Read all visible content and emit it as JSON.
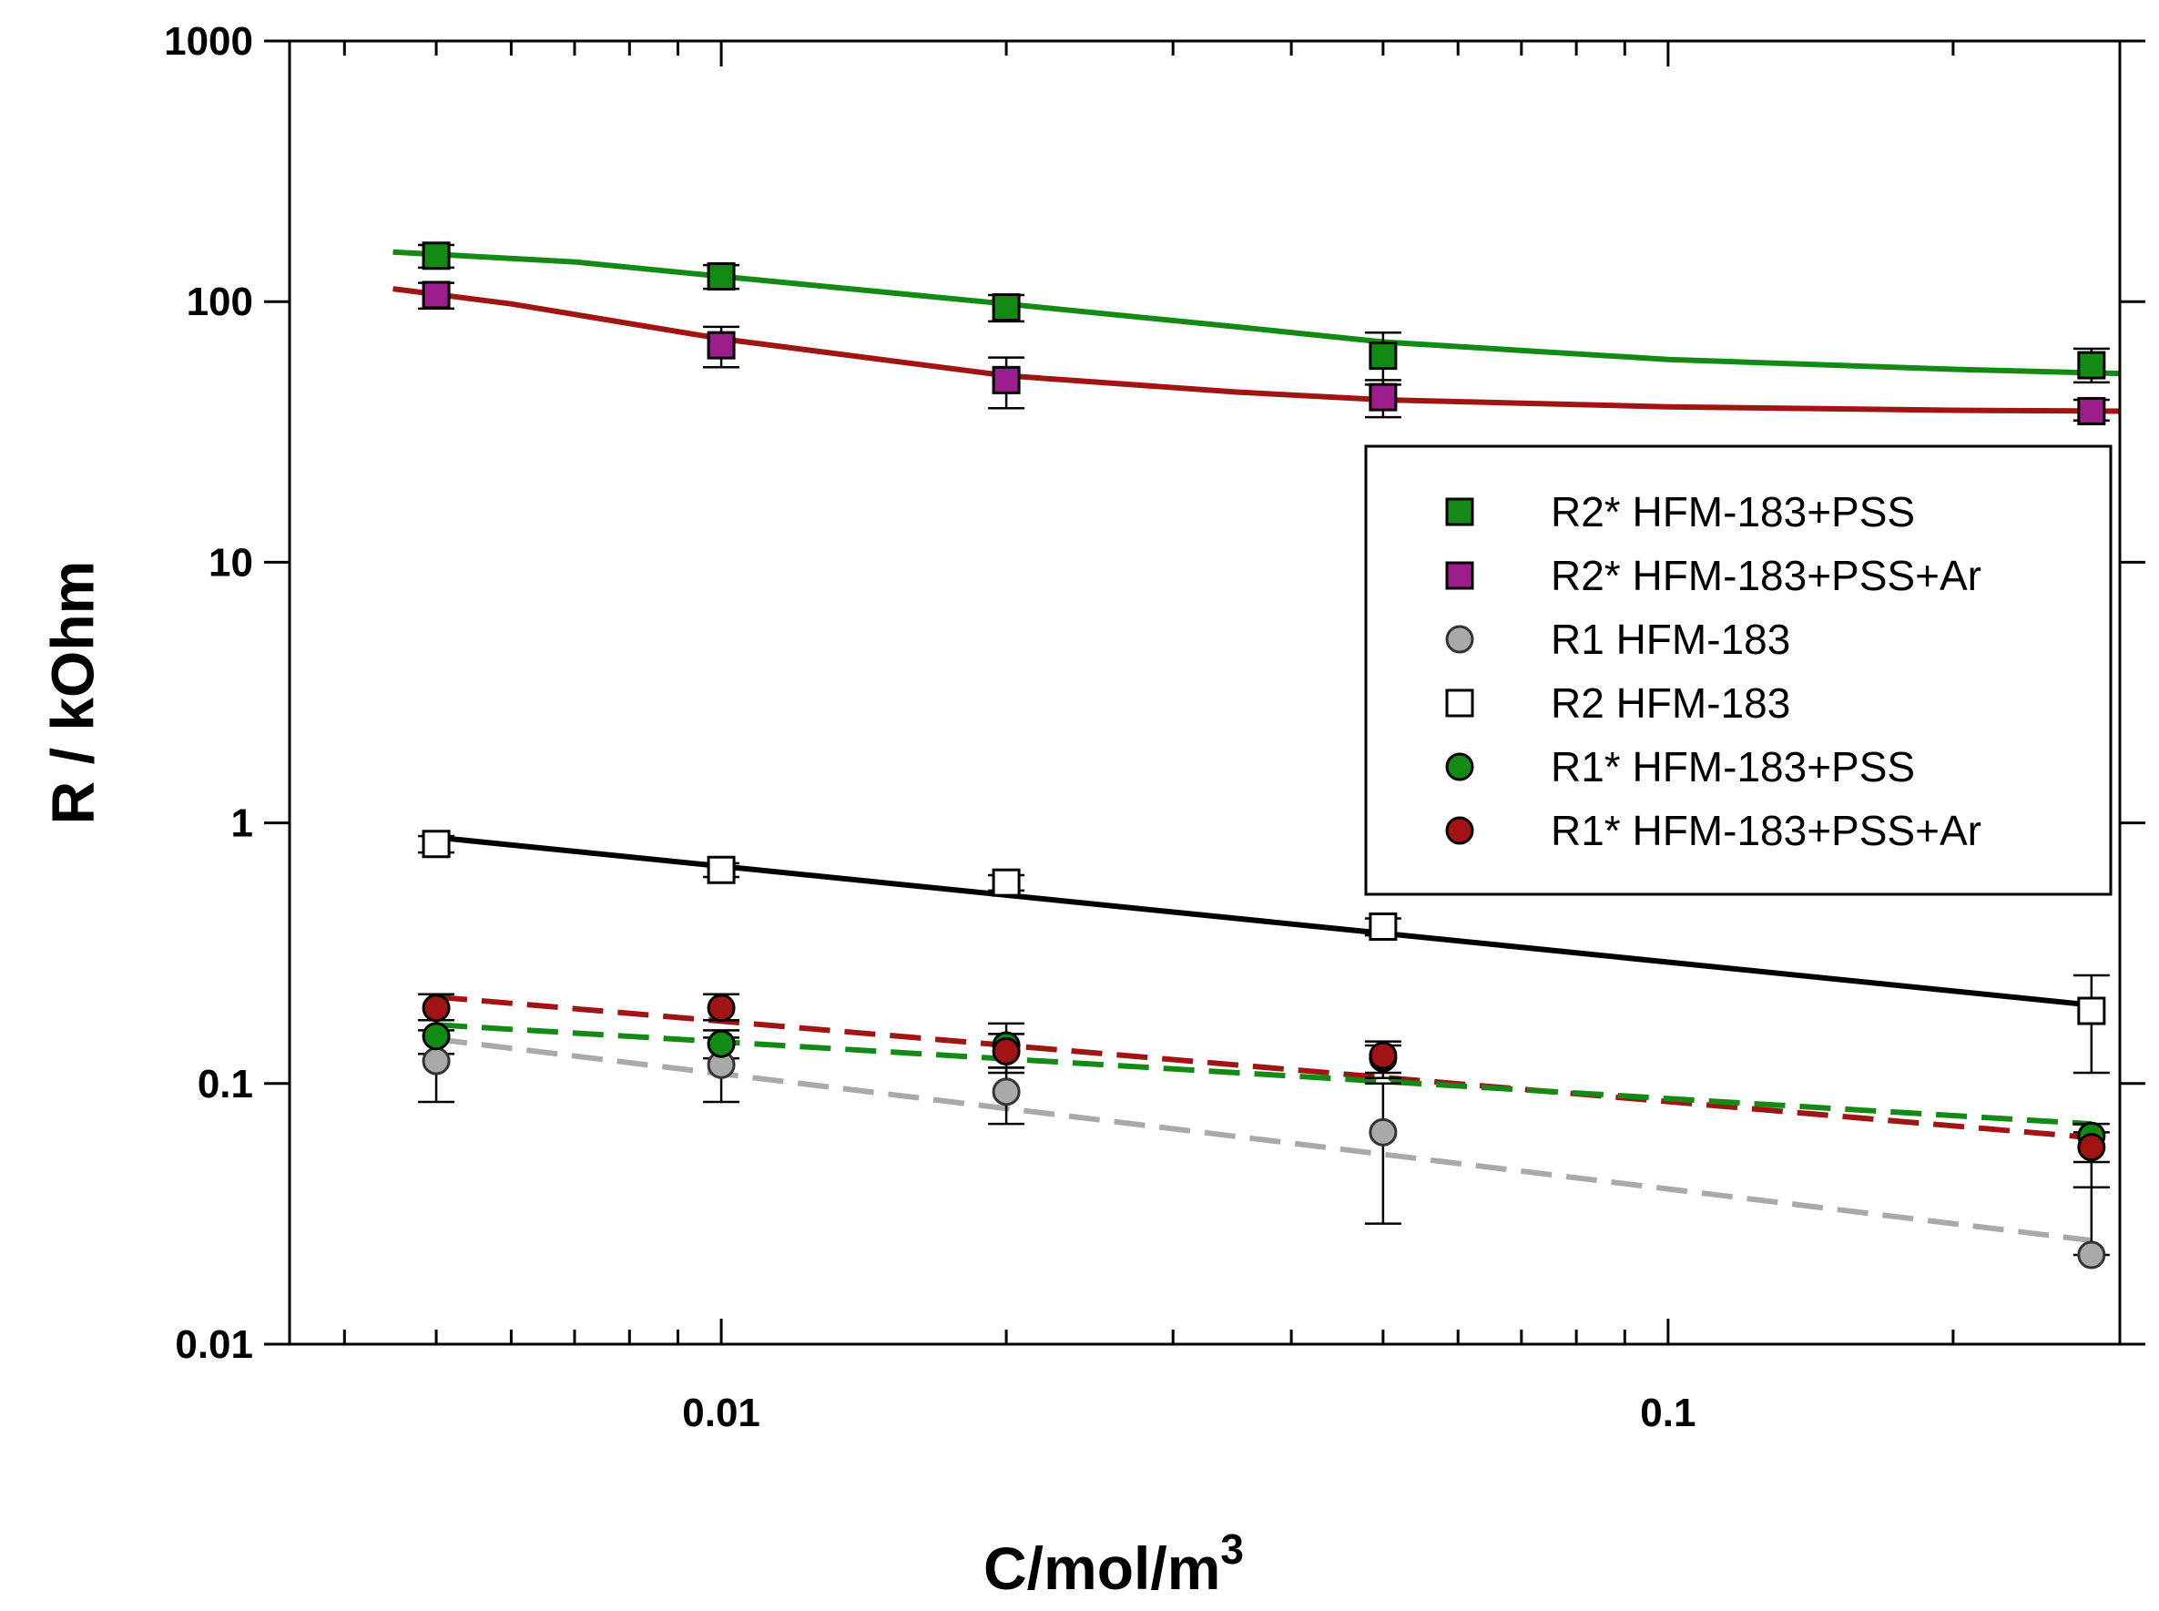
{
  "chart_data": {
    "type": "scatter",
    "title": "",
    "xlabel": "C/mol/m",
    "xlabel_superscript": "3",
    "ylabel": "R / kOhm",
    "xscale": "log",
    "yscale": "log",
    "xlim": [
      0.0035,
      0.3
    ],
    "ylim": [
      0.01,
      1000
    ],
    "x_tick_labels": [
      {
        "value": 0.01,
        "label": "0.01"
      },
      {
        "value": 0.1,
        "label": "0.1"
      }
    ],
    "y_tick_labels": [
      {
        "value": 0.01,
        "label": "0.01"
      },
      {
        "value": 0.1,
        "label": "0.1"
      },
      {
        "value": 1,
        "label": "1"
      },
      {
        "value": 10,
        "label": "10"
      },
      {
        "value": 100,
        "label": "100"
      },
      {
        "value": 1000,
        "label": "1000"
      }
    ],
    "legend_position": "right",
    "grid": false,
    "series": [
      {
        "name": "R2* HFM-183+PSS",
        "marker": "square",
        "fill": "#138a13",
        "stroke": "#000000",
        "points": [
          {
            "x": 0.005,
            "y": 150,
            "lo": 135,
            "hi": 165
          },
          {
            "x": 0.01,
            "y": 125,
            "lo": 112,
            "hi": 138
          },
          {
            "x": 0.02,
            "y": 95,
            "lo": 84,
            "hi": 106
          },
          {
            "x": 0.05,
            "y": 62,
            "lo": 48,
            "hi": 76
          },
          {
            "x": 0.28,
            "y": 57,
            "lo": 49,
            "hi": 66
          }
        ]
      },
      {
        "name": "R2* HFM-183+PSS+Ar",
        "marker": "square",
        "fill": "#9c1e8c",
        "stroke": "#000000",
        "points": [
          {
            "x": 0.005,
            "y": 106,
            "lo": 94,
            "hi": 118
          },
          {
            "x": 0.01,
            "y": 68,
            "lo": 56,
            "hi": 80
          },
          {
            "x": 0.02,
            "y": 50,
            "lo": 39,
            "hi": 61
          },
          {
            "x": 0.05,
            "y": 43,
            "lo": 36,
            "hi": 50
          },
          {
            "x": 0.28,
            "y": 38,
            "lo": 35,
            "hi": 42
          }
        ]
      },
      {
        "name": "R1 HFM-183",
        "marker": "circle",
        "fill": "#a9a9a9",
        "stroke": "#333333",
        "points": [
          {
            "x": 0.005,
            "y": 0.122,
            "lo": 0.085,
            "hi": 0.16
          },
          {
            "x": 0.01,
            "y": 0.118,
            "lo": 0.085,
            "hi": 0.15
          },
          {
            "x": 0.02,
            "y": 0.093,
            "lo": 0.07,
            "hi": 0.115
          },
          {
            "x": 0.05,
            "y": 0.065,
            "lo": 0.029,
            "hi": 0.1
          },
          {
            "x": 0.28,
            "y": 0.022,
            "lo": 0.022,
            "hi": 0.04
          }
        ]
      },
      {
        "name": "R2 HFM-183",
        "marker": "square",
        "fill": "#ffffff",
        "stroke": "#000000",
        "points": [
          {
            "x": 0.005,
            "y": 0.83,
            "lo": 0.77,
            "hi": 0.89
          },
          {
            "x": 0.01,
            "y": 0.66,
            "lo": 0.62,
            "hi": 0.7
          },
          {
            "x": 0.02,
            "y": 0.59,
            "lo": 0.55,
            "hi": 0.63
          },
          {
            "x": 0.05,
            "y": 0.4,
            "lo": 0.37,
            "hi": 0.43
          },
          {
            "x": 0.28,
            "y": 0.19,
            "lo": 0.11,
            "hi": 0.26
          }
        ]
      },
      {
        "name": "R1* HFM-183+PSS",
        "marker": "circle",
        "fill": "#138a13",
        "stroke": "#000000",
        "points": [
          {
            "x": 0.005,
            "y": 0.152,
            "lo": 0.13,
            "hi": 0.175
          },
          {
            "x": 0.01,
            "y": 0.142,
            "lo": 0.125,
            "hi": 0.16
          },
          {
            "x": 0.02,
            "y": 0.14,
            "lo": 0.115,
            "hi": 0.17
          },
          {
            "x": 0.05,
            "y": 0.125,
            "lo": 0.105,
            "hi": 0.14
          },
          {
            "x": 0.28,
            "y": 0.063,
            "lo": 0.05,
            "hi": 0.07
          }
        ]
      },
      {
        "name": "R1* HFM-183+PSS+Ar",
        "marker": "circle",
        "fill": "#a01414",
        "stroke": "#000000",
        "points": [
          {
            "x": 0.005,
            "y": 0.195,
            "lo": 0.175,
            "hi": 0.22
          },
          {
            "x": 0.01,
            "y": 0.195,
            "lo": 0.175,
            "hi": 0.22
          },
          {
            "x": 0.02,
            "y": 0.133,
            "lo": 0.11,
            "hi": 0.155
          },
          {
            "x": 0.05,
            "y": 0.128,
            "lo": 0.11,
            "hi": 0.145
          },
          {
            "x": 0.28,
            "y": 0.057,
            "lo": 0.04,
            "hi": 0.065
          }
        ]
      }
    ],
    "fit_lines": [
      {
        "name": "R2* HFM-183+PSS fit",
        "style": "solid",
        "color": "#138a13",
        "points": [
          [
            0.0045,
            155
          ],
          [
            0.007,
            142
          ],
          [
            0.01,
            125
          ],
          [
            0.02,
            98
          ],
          [
            0.035,
            80
          ],
          [
            0.05,
            70
          ],
          [
            0.1,
            60
          ],
          [
            0.2,
            55
          ],
          [
            0.3,
            53
          ]
        ]
      },
      {
        "name": "R2* HFM-183+PSS+Ar fit",
        "style": "solid",
        "color": "#a01414",
        "points": [
          [
            0.0045,
            112
          ],
          [
            0.006,
            98
          ],
          [
            0.01,
            72
          ],
          [
            0.02,
            52
          ],
          [
            0.035,
            45
          ],
          [
            0.05,
            42
          ],
          [
            0.1,
            39.5
          ],
          [
            0.2,
            38.3
          ],
          [
            0.3,
            38
          ]
        ]
      },
      {
        "name": "R2 HFM-183 fit",
        "style": "solid",
        "color": "#000000",
        "points": [
          [
            0.005,
            0.88
          ],
          [
            0.28,
            0.2
          ]
        ]
      },
      {
        "name": "R1* HFM-183+PSS+Ar fit",
        "style": "dashed",
        "color": "#a01414",
        "points": [
          [
            0.005,
            0.215
          ],
          [
            0.28,
            0.062
          ]
        ]
      },
      {
        "name": "R1* HFM-183+PSS fit",
        "style": "dashed",
        "color": "#138a13",
        "points": [
          [
            0.005,
            0.168
          ],
          [
            0.28,
            0.07
          ]
        ]
      },
      {
        "name": "R1 HFM-183 fit",
        "style": "dashed",
        "color": "#a9a9a9",
        "points": [
          [
            0.005,
            0.148
          ],
          [
            0.28,
            0.025
          ]
        ]
      }
    ]
  }
}
